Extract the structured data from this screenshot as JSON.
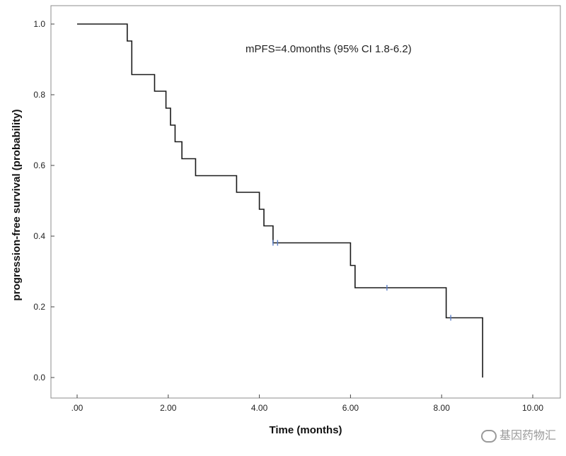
{
  "chart_data": {
    "type": "line",
    "step": true,
    "xlabel": "Time (months)",
    "ylabel": "progression-free survival (probability)",
    "xlim": [
      0,
      10
    ],
    "ylim": [
      0,
      1
    ],
    "x_ticks": [
      0,
      2,
      4,
      6,
      8,
      10
    ],
    "x_tick_labels": [
      ".00",
      "2.00",
      "4.00",
      "6.00",
      "8.00",
      "10.00"
    ],
    "y_ticks": [
      0,
      0.2,
      0.4,
      0.6,
      0.8,
      1.0
    ],
    "y_tick_labels": [
      "0.0",
      "0.2",
      "0.4",
      "0.6",
      "0.8",
      "1.0"
    ],
    "grid": false,
    "annotation": "mPFS=4.0months (95% CI 1.8-6.2)",
    "series": [
      {
        "color": "#1a1a1a",
        "steps": [
          {
            "x": 0,
            "y": 1.0
          },
          {
            "x": 1.1,
            "y": 0.952
          },
          {
            "x": 1.2,
            "y": 0.857
          },
          {
            "x": 1.7,
            "y": 0.81
          },
          {
            "x": 1.95,
            "y": 0.762
          },
          {
            "x": 2.05,
            "y": 0.714
          },
          {
            "x": 2.15,
            "y": 0.667
          },
          {
            "x": 2.3,
            "y": 0.619
          },
          {
            "x": 2.6,
            "y": 0.571
          },
          {
            "x": 3.5,
            "y": 0.524
          },
          {
            "x": 4.0,
            "y": 0.476
          },
          {
            "x": 4.1,
            "y": 0.429
          },
          {
            "x": 4.3,
            "y": 0.381
          },
          {
            "x": 6.0,
            "y": 0.317
          },
          {
            "x": 6.1,
            "y": 0.254
          },
          {
            "x": 8.1,
            "y": 0.169
          },
          {
            "x": 8.9,
            "y": 0.0
          }
        ],
        "censored": [
          {
            "x": 4.3,
            "y": 0.381
          },
          {
            "x": 4.4,
            "y": 0.381
          },
          {
            "x": 6.8,
            "y": 0.254
          },
          {
            "x": 8.2,
            "y": 0.169
          }
        ],
        "censor_color": "#5b7fc9"
      }
    ]
  },
  "watermark": {
    "icon": "wechat-icon",
    "text": "基因药物汇"
  }
}
